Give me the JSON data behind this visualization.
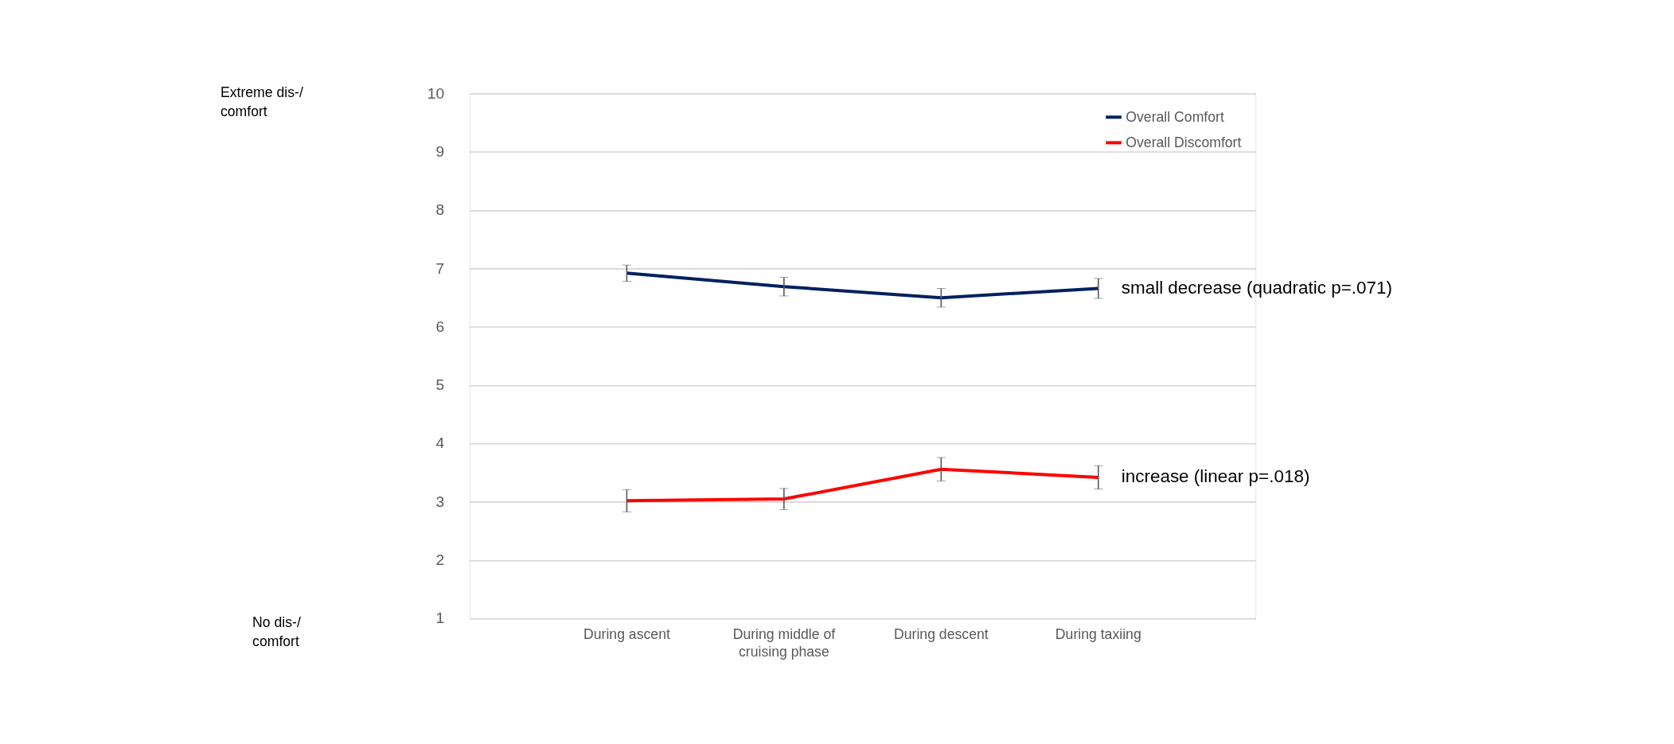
{
  "chart_data": {
    "type": "line",
    "categories": [
      "During ascent",
      "During middle of cruising phase",
      "During descent",
      "During taxiing"
    ],
    "series": [
      {
        "name": "Overall Comfort",
        "color": "#002060",
        "values": [
          6.92,
          6.69,
          6.5,
          6.66
        ],
        "errors": [
          0.14,
          0.16,
          0.16,
          0.17
        ]
      },
      {
        "name": "Overall Discomfort",
        "color": "#ff0000",
        "values": [
          3.02,
          3.05,
          3.56,
          3.42
        ],
        "errors": [
          0.19,
          0.18,
          0.2,
          0.2
        ]
      }
    ],
    "ylim": [
      1,
      10
    ],
    "yticks": [
      1,
      2,
      3,
      4,
      5,
      6,
      7,
      8,
      9,
      10
    ],
    "grid": "y",
    "legend": "top right",
    "marker": "none",
    "line_style": "solid",
    "annotations": [
      "Extreme dis-/\ncomfort",
      "No dis-/\ncomfort",
      {
        "text": "small decrease (quadratic p=.071)",
        "x": "During taxiing",
        "y": 6.66
      },
      {
        "text": "increase (linear p=.018)",
        "x": "During taxiing",
        "y": 3.42
      }
    ]
  }
}
